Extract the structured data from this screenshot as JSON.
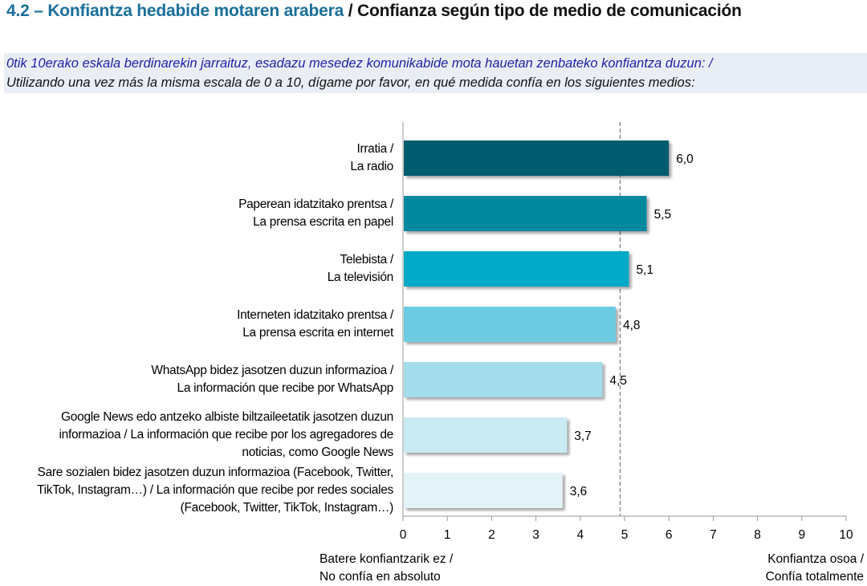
{
  "title": {
    "eu": "4.2 – Konfiantza hedabide motaren arabera",
    "es": "/ Confianza según tipo de medio de comunicación"
  },
  "question": {
    "eu": "0tik 10erako eskala berdinarekin jarraituz, esadazu mesedez komunikabide mota hauetan zenbateko konfiantza duzun: /",
    "es": "Utilizando una vez más la misma escala de 0 a 10, dígame por favor, en qué medida confía en los siguientes medios:"
  },
  "axis_notes": {
    "left": [
      "Batere konfiantzarik ez /",
      "No confía en absoluto"
    ],
    "right": [
      "Konfiantza osoa /",
      "Confía totalmente"
    ]
  },
  "chart_data": {
    "type": "bar",
    "orientation": "horizontal",
    "categories": [
      [
        "Irratia /",
        "La radio"
      ],
      [
        "Paperean idatzitako prentsa /",
        "La prensa escrita en papel"
      ],
      [
        "Telebista /",
        "La televisión"
      ],
      [
        "Interneten idatzitako prentsa /",
        "La prensa escrita en internet"
      ],
      [
        "WhatsApp bidez jasotzen duzun informazioa /",
        "La información que recibe por WhatsApp"
      ],
      [
        "Google News edo antzeko albiste biltzaileetatik jasotzen duzun",
        "informazioa / La información que recibe por los agregadores de",
        "noticias, como Google News"
      ],
      [
        "Sare sozialen bidez jasotzen duzun informazioa (Facebook, Twitter,",
        "TikTok, Instagram…) / La información que recibe por redes sociales",
        "(Facebook, Twitter, TikTok, Instagram…)"
      ]
    ],
    "values": [
      6.0,
      5.5,
      5.1,
      4.8,
      4.5,
      3.7,
      3.6
    ],
    "value_labels": [
      "6,0",
      "5,5",
      "5,1",
      "4,8",
      "4,5",
      "3,7",
      "3,6"
    ],
    "bar_colors": [
      "#005b6e",
      "#00889e",
      "#00a9c6",
      "#6ccbe0",
      "#a3dcea",
      "#c9ebf3",
      "#e4f3f8"
    ],
    "xlim": [
      0,
      10
    ],
    "xticks": [
      0,
      1,
      2,
      3,
      4,
      5,
      6,
      7,
      8,
      9,
      10
    ],
    "reference_line": 4.9,
    "grid": false
  }
}
